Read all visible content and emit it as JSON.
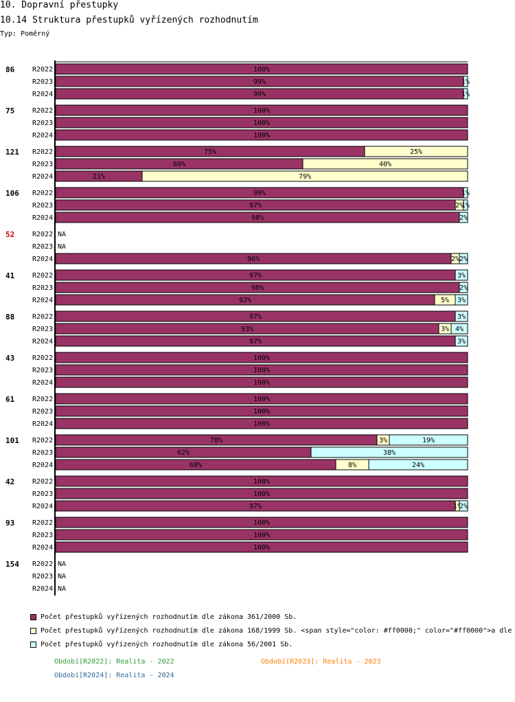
{
  "header": {
    "title": "10. Dopravní přestupky",
    "subtitle": "10.14 Struktura přestupků vyřízených rozhodnutím",
    "type_label": "Typ: Poměrný"
  },
  "colors": {
    "s1": "#993366",
    "s2": "#ffffcc",
    "s3": "#ccffff",
    "red_label": "#cc0000",
    "p2022": "#339933",
    "p2023": "#ff8000",
    "p2024": "#336699"
  },
  "chart_data": {
    "type": "bar",
    "orientation": "horizontal",
    "stacked": true,
    "normalized": true,
    "xlim": [
      0,
      100
    ],
    "series_names": [
      "Počet přestupků vyřízených rozhodnutím dle zákona 361/2000 Sb.",
      "Počet přestupků vyřízených rozhodnutím dle zákona 168/1999 Sb. <span style=\"color: #ff0000;\" color=\"#ff0000\">a dle",
      "Počet přestupků vyřízených rozhodnutím dle zákona 56/2001 Sb."
    ],
    "groups": [
      {
        "label": "86",
        "highlight": false,
        "rows": [
          {
            "period": "R2022",
            "values": [
              100,
              0,
              0
            ],
            "labels": [
              "100%",
              "",
              ""
            ]
          },
          {
            "period": "R2023",
            "values": [
              99,
              0,
              1
            ],
            "labels": [
              "99%",
              "",
              "1%"
            ]
          },
          {
            "period": "R2024",
            "values": [
              99,
              0,
              1
            ],
            "labels": [
              "99%",
              "",
              "1%"
            ]
          }
        ]
      },
      {
        "label": "75",
        "highlight": false,
        "rows": [
          {
            "period": "R2022",
            "values": [
              100,
              0,
              0
            ],
            "labels": [
              "100%",
              "",
              ""
            ]
          },
          {
            "period": "R2023",
            "values": [
              100,
              0,
              0
            ],
            "labels": [
              "100%",
              "",
              ""
            ]
          },
          {
            "period": "R2024",
            "values": [
              100,
              0,
              0
            ],
            "labels": [
              "100%",
              "",
              ""
            ]
          }
        ]
      },
      {
        "label": "121",
        "highlight": false,
        "rows": [
          {
            "period": "R2022",
            "values": [
              75,
              25,
              0
            ],
            "labels": [
              "75%",
              "25%",
              ""
            ]
          },
          {
            "period": "R2023",
            "values": [
              60,
              40,
              0
            ],
            "labels": [
              "60%",
              "40%",
              ""
            ]
          },
          {
            "period": "R2024",
            "values": [
              21,
              79,
              0
            ],
            "labels": [
              "21%",
              "79%",
              ""
            ]
          }
        ]
      },
      {
        "label": "106",
        "highlight": false,
        "rows": [
          {
            "period": "R2022",
            "values": [
              99,
              0,
              1
            ],
            "labels": [
              "99%",
              "",
              "1%"
            ]
          },
          {
            "period": "R2023",
            "values": [
              97,
              2,
              1
            ],
            "labels": [
              "97%",
              "2%",
              "1%"
            ]
          },
          {
            "period": "R2024",
            "values": [
              98,
              0,
              2
            ],
            "labels": [
              "98%",
              "",
              "2%"
            ]
          }
        ]
      },
      {
        "label": "52",
        "highlight": true,
        "rows": [
          {
            "period": "R2022",
            "na": true
          },
          {
            "period": "R2023",
            "na": true
          },
          {
            "period": "R2024",
            "values": [
              96,
              2,
              2
            ],
            "labels": [
              "96%",
              "2%",
              "2%"
            ]
          }
        ]
      },
      {
        "label": "41",
        "highlight": false,
        "rows": [
          {
            "period": "R2022",
            "values": [
              97,
              0,
              3
            ],
            "labels": [
              "97%",
              "",
              "3%"
            ]
          },
          {
            "period": "R2023",
            "values": [
              98,
              0,
              2
            ],
            "labels": [
              "98%",
              "",
              "2%"
            ]
          },
          {
            "period": "R2024",
            "values": [
              92,
              5,
              3
            ],
            "labels": [
              "92%",
              "5%",
              "3%"
            ]
          }
        ]
      },
      {
        "label": "88",
        "highlight": false,
        "rows": [
          {
            "period": "R2022",
            "values": [
              97,
              0,
              3
            ],
            "labels": [
              "97%",
              "",
              "3%"
            ]
          },
          {
            "period": "R2023",
            "values": [
              93,
              3,
              4
            ],
            "labels": [
              "93%",
              "3%",
              "4%"
            ]
          },
          {
            "period": "R2024",
            "values": [
              97,
              0,
              3
            ],
            "labels": [
              "97%",
              "",
              "3%"
            ]
          }
        ]
      },
      {
        "label": "43",
        "highlight": false,
        "rows": [
          {
            "period": "R2022",
            "values": [
              100,
              0,
              0
            ],
            "labels": [
              "100%",
              "",
              ""
            ]
          },
          {
            "period": "R2023",
            "values": [
              100,
              0,
              0
            ],
            "labels": [
              "100%",
              "",
              ""
            ]
          },
          {
            "period": "R2024",
            "values": [
              100,
              0,
              0
            ],
            "labels": [
              "100%",
              "",
              ""
            ]
          }
        ]
      },
      {
        "label": "61",
        "highlight": false,
        "rows": [
          {
            "period": "R2022",
            "values": [
              100,
              0,
              0
            ],
            "labels": [
              "100%",
              "",
              ""
            ]
          },
          {
            "period": "R2023",
            "values": [
              100,
              0,
              0
            ],
            "labels": [
              "100%",
              "",
              ""
            ]
          },
          {
            "period": "R2024",
            "values": [
              100,
              0,
              0
            ],
            "labels": [
              "100%",
              "",
              ""
            ]
          }
        ]
      },
      {
        "label": "101",
        "highlight": false,
        "rows": [
          {
            "period": "R2022",
            "values": [
              78,
              3,
              19
            ],
            "labels": [
              "78%",
              "3%",
              "19%"
            ]
          },
          {
            "period": "R2023",
            "values": [
              62,
              0,
              38
            ],
            "labels": [
              "62%",
              "",
              "38%"
            ]
          },
          {
            "period": "R2024",
            "values": [
              68,
              8,
              24
            ],
            "labels": [
              "68%",
              "8%",
              "24%"
            ]
          }
        ]
      },
      {
        "label": "42",
        "highlight": false,
        "rows": [
          {
            "period": "R2022",
            "values": [
              100,
              0,
              0
            ],
            "labels": [
              "100%",
              "",
              ""
            ]
          },
          {
            "period": "R2023",
            "values": [
              100,
              0,
              0
            ],
            "labels": [
              "100%",
              "",
              ""
            ]
          },
          {
            "period": "R2024",
            "values": [
              97,
              1,
              2
            ],
            "labels": [
              "97%",
              "1%",
              "2%"
            ]
          }
        ]
      },
      {
        "label": "93",
        "highlight": false,
        "rows": [
          {
            "period": "R2022",
            "values": [
              100,
              0,
              0
            ],
            "labels": [
              "100%",
              "",
              ""
            ]
          },
          {
            "period": "R2023",
            "values": [
              100,
              0,
              0
            ],
            "labels": [
              "100%",
              "",
              ""
            ]
          },
          {
            "period": "R2024",
            "values": [
              100,
              0,
              0
            ],
            "labels": [
              "100%",
              "",
              ""
            ]
          }
        ]
      },
      {
        "label": "154",
        "highlight": false,
        "rows": [
          {
            "period": "R2022",
            "na": true
          },
          {
            "period": "R2023",
            "na": true
          },
          {
            "period": "R2024",
            "na": true
          }
        ]
      }
    ],
    "na_label": "NA"
  },
  "legend": {
    "items": [
      "Počet přestupků vyřízených rozhodnutím dle zákona 361/2000 Sb.",
      "Počet přestupků vyřízených rozhodnutím dle zákona 168/1999 Sb. <span style=\"color: #ff0000;\" color=\"#ff0000\">a dle",
      "Počet přestupků vyřízených rozhodnutím dle zákona 56/2001 Sb."
    ],
    "periods": {
      "p2022": "Období[R2022]: Realita - 2022",
      "p2023": "Období[R2023]: Realita - 2023",
      "p2024": "Období[R2024]: Realita - 2024"
    }
  }
}
